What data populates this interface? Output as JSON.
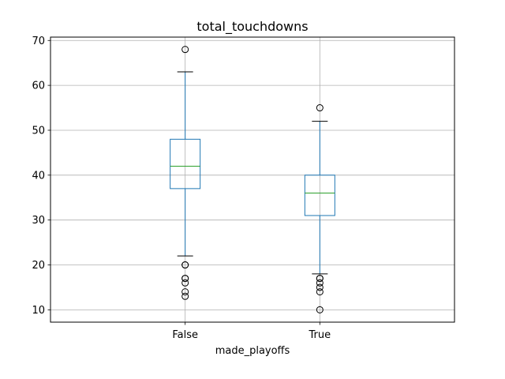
{
  "chart_data": {
    "type": "box",
    "title": "total_touchdowns",
    "xlabel": "made_playoffs",
    "ylabel": "",
    "ylim": [
      7.25,
      70.75
    ],
    "yticks": [
      10,
      20,
      30,
      40,
      50,
      60,
      70
    ],
    "grid": true,
    "categories": [
      "False",
      "True"
    ],
    "boxes": [
      {
        "category": "False",
        "whislo": 22,
        "q1": 37,
        "med": 42,
        "q3": 48,
        "whishi": 63,
        "fliers": [
          68,
          20,
          20,
          17,
          17,
          16,
          14,
          13
        ]
      },
      {
        "category": "True",
        "whislo": 18,
        "q1": 31,
        "med": 36,
        "q3": 40,
        "whishi": 52,
        "fliers": [
          55,
          17,
          17,
          16,
          15,
          14,
          10
        ]
      }
    ],
    "colors": {
      "box": "#1f77b4",
      "median": "#2ca02c",
      "whisker_cap": "#000000",
      "flier": "#000000",
      "grid": "#b0b0b0"
    }
  }
}
